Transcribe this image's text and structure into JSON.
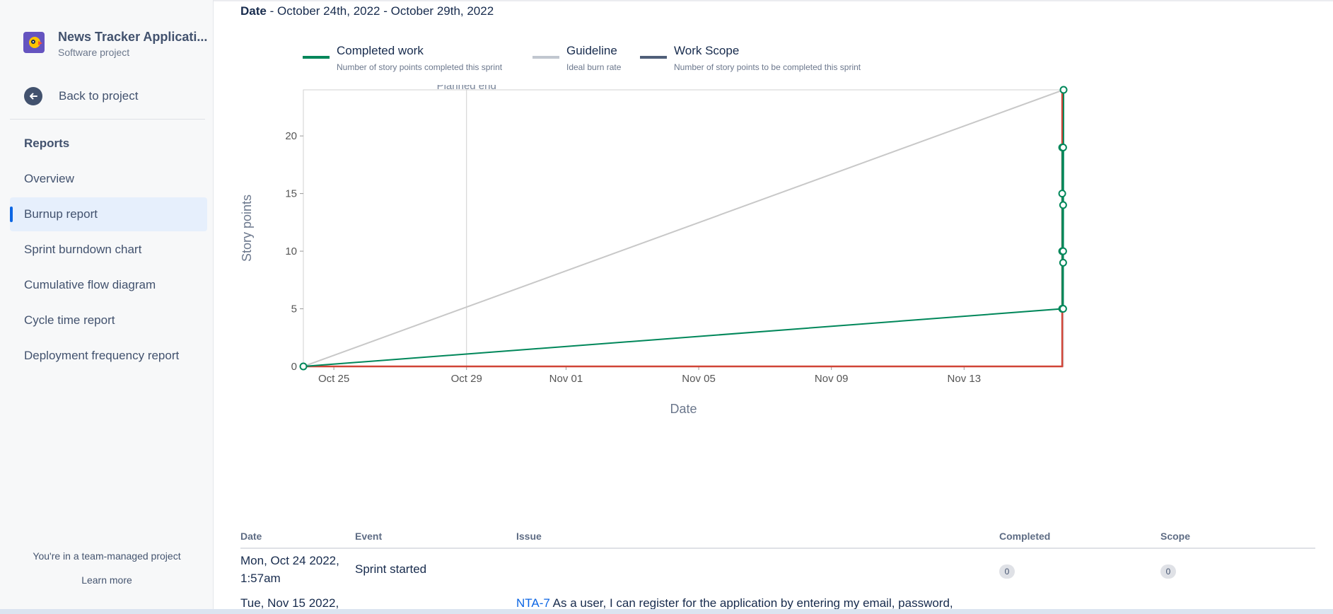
{
  "project": {
    "name": "News Tracker Applicati...",
    "type": "Software project"
  },
  "nav": {
    "back_label": "Back to project",
    "section_title": "Reports",
    "items": [
      {
        "label": "Overview"
      },
      {
        "label": "Burnup report",
        "active": true
      },
      {
        "label": "Sprint burndown chart"
      },
      {
        "label": "Cumulative flow diagram"
      },
      {
        "label": "Cycle time report"
      },
      {
        "label": "Deployment frequency report"
      }
    ],
    "footer_note": "You're in a team-managed project",
    "learn_more": "Learn more"
  },
  "report": {
    "date_label": "Date",
    "date_range": " - October 24th, 2022 - October 29th, 2022"
  },
  "legend": [
    {
      "title": "Completed work",
      "desc": "Number of story points completed this sprint",
      "color": "#00875a"
    },
    {
      "title": "Guideline",
      "desc": "Ideal burn rate",
      "color": "#c1c7d0"
    },
    {
      "title": "Work Scope",
      "desc": "Number of story points to be completed this sprint",
      "color": "#505f79"
    }
  ],
  "chart_data": {
    "type": "line",
    "xlabel": "Date",
    "ylabel": "Story points",
    "marker_label": "Planned end",
    "marker_date": "2022-10-29",
    "x_tick_labels": [
      "Oct 25",
      "Oct 29",
      "Nov 01",
      "Nov 05",
      "Nov 09",
      "Nov 13"
    ],
    "x_tick_dates": [
      "2022-10-25",
      "2022-10-29",
      "2022-11-01",
      "2022-11-05",
      "2022-11-09",
      "2022-11-13"
    ],
    "xlim": [
      "2022-10-24T01:57",
      "2022-11-15T23:59"
    ],
    "ylim": [
      0,
      24
    ],
    "y_ticks": [
      0,
      5,
      10,
      15,
      20
    ],
    "series": [
      {
        "name": "Guideline",
        "color": "#c8c8c8",
        "points": [
          {
            "x": "2022-10-24T01:57",
            "y": 0
          },
          {
            "x": "2022-11-15T23:59",
            "y": 24
          }
        ]
      },
      {
        "name": "Work Scope",
        "color": "#d04437",
        "points": [
          {
            "x": "2022-10-24T01:57",
            "y": 0
          },
          {
            "x": "2022-11-15T23:00",
            "y": 0
          },
          {
            "x": "2022-11-15T23:00",
            "y": 24
          }
        ]
      },
      {
        "name": "Completed work",
        "color": "#00875a",
        "points": [
          {
            "x": "2022-10-24T01:57",
            "y": 0
          },
          {
            "x": "2022-11-15T23:00",
            "y": 5
          },
          {
            "x": "2022-11-15T23:00",
            "y": 10
          },
          {
            "x": "2022-11-15T23:00",
            "y": 15
          },
          {
            "x": "2022-11-15T23:00",
            "y": 19
          },
          {
            "x": "2022-11-15T23:40",
            "y": 19
          },
          {
            "x": "2022-11-15T23:40",
            "y": 14
          },
          {
            "x": "2022-11-15T23:40",
            "y": 10
          },
          {
            "x": "2022-11-15T23:40",
            "y": 9
          },
          {
            "x": "2022-11-15T23:40",
            "y": 5
          },
          {
            "x": "2022-11-15T23:59",
            "y": 24
          }
        ]
      }
    ]
  },
  "table": {
    "headers": {
      "date": "Date",
      "event": "Event",
      "issue": "Issue",
      "completed": "Completed",
      "scope": "Scope"
    },
    "rows": [
      {
        "date_line1": "Mon, Oct 24 2022,",
        "date_line2": "1:57am",
        "event": "Sprint started",
        "issue_key": "",
        "issue_text": "",
        "completed": "0",
        "scope": "0"
      },
      {
        "date_line1": "Tue, Nov 15 2022,",
        "date_line2": "",
        "event": "",
        "issue_key": "NTA-7",
        "issue_text": " As a user, I can register for the application by entering my email, password,",
        "completed": "",
        "scope": ""
      }
    ]
  }
}
